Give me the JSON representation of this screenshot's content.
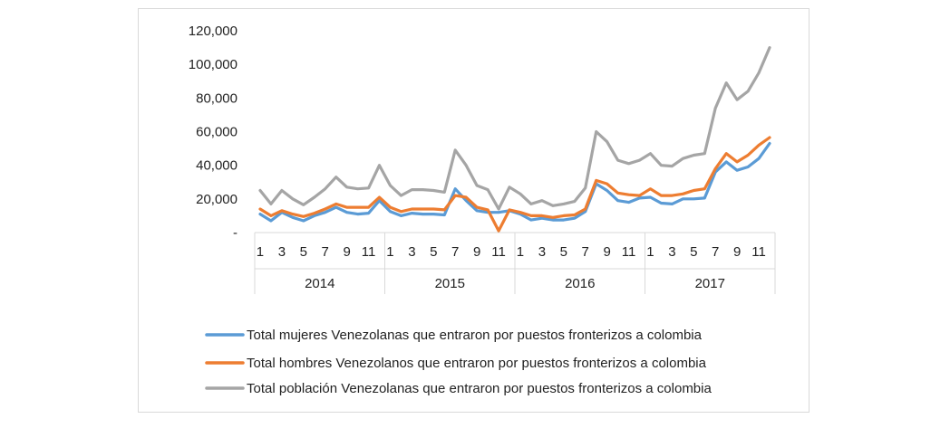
{
  "chart_data": {
    "type": "line",
    "title": "",
    "xlabel": "",
    "ylabel": "",
    "ylim": [
      0,
      120000
    ],
    "y_ticks": [
      0,
      20000,
      40000,
      60000,
      80000,
      100000,
      120000
    ],
    "y_tick_labels": [
      "-",
      "20,000",
      "40,000",
      "60,000",
      "80,000",
      "100,000",
      "120,000"
    ],
    "grid": false,
    "legend_position": "bottom",
    "years": [
      "2014",
      "2015",
      "2016",
      "2017"
    ],
    "month_labels": [
      "1",
      "3",
      "5",
      "7",
      "9",
      "11"
    ],
    "month_label_indices": [
      0,
      2,
      4,
      6,
      8,
      10
    ],
    "series": [
      {
        "name": "Total mujeres Venezolanas que entraron por puestos fronterizos a colombia",
        "color": "#5b9bd5",
        "values": [
          11000,
          7000,
          12000,
          9000,
          7000,
          10000,
          12000,
          15000,
          12000,
          11000,
          11500,
          19000,
          12500,
          10000,
          11500,
          11000,
          11000,
          10500,
          26000,
          19000,
          13000,
          12000,
          12000,
          13000,
          11000,
          7500,
          8500,
          7500,
          7500,
          8500,
          12500,
          29000,
          25000,
          19000,
          18000,
          20500,
          21000,
          17500,
          17000,
          20000,
          20000,
          20500,
          36000,
          42000,
          37000,
          39000,
          44000,
          53000
        ]
      },
      {
        "name": "Total hombres Venezolanos que entraron por puestos fronterizos a colombia",
        "color": "#ed7d31",
        "values": [
          14000,
          10000,
          13000,
          11000,
          9500,
          11500,
          14000,
          17000,
          15000,
          15000,
          15000,
          21000,
          15000,
          12500,
          14000,
          14000,
          14000,
          13500,
          22000,
          21000,
          15000,
          13500,
          1000,
          13500,
          12000,
          10000,
          10000,
          9000,
          10000,
          10500,
          14000,
          31000,
          29000,
          23500,
          22500,
          22000,
          26000,
          22000,
          22000,
          23000,
          25000,
          26000,
          38000,
          47000,
          42000,
          46000,
          52000,
          56500
        ]
      },
      {
        "name": "Total población Venezolanas que entraron por puestos fronterizos a colombia",
        "color": "#a5a5a5",
        "values": [
          25000,
          17000,
          25000,
          20000,
          16500,
          21000,
          26000,
          33000,
          27000,
          26000,
          26500,
          40000,
          28000,
          22000,
          25500,
          25500,
          25000,
          24000,
          49000,
          40000,
          28000,
          25500,
          14000,
          27000,
          23000,
          17000,
          19000,
          16000,
          17000,
          18500,
          26500,
          60000,
          54000,
          43000,
          41000,
          43000,
          47000,
          40000,
          39500,
          44000,
          46000,
          47000,
          74000,
          89000,
          79000,
          84000,
          95000,
          110000
        ]
      }
    ]
  }
}
